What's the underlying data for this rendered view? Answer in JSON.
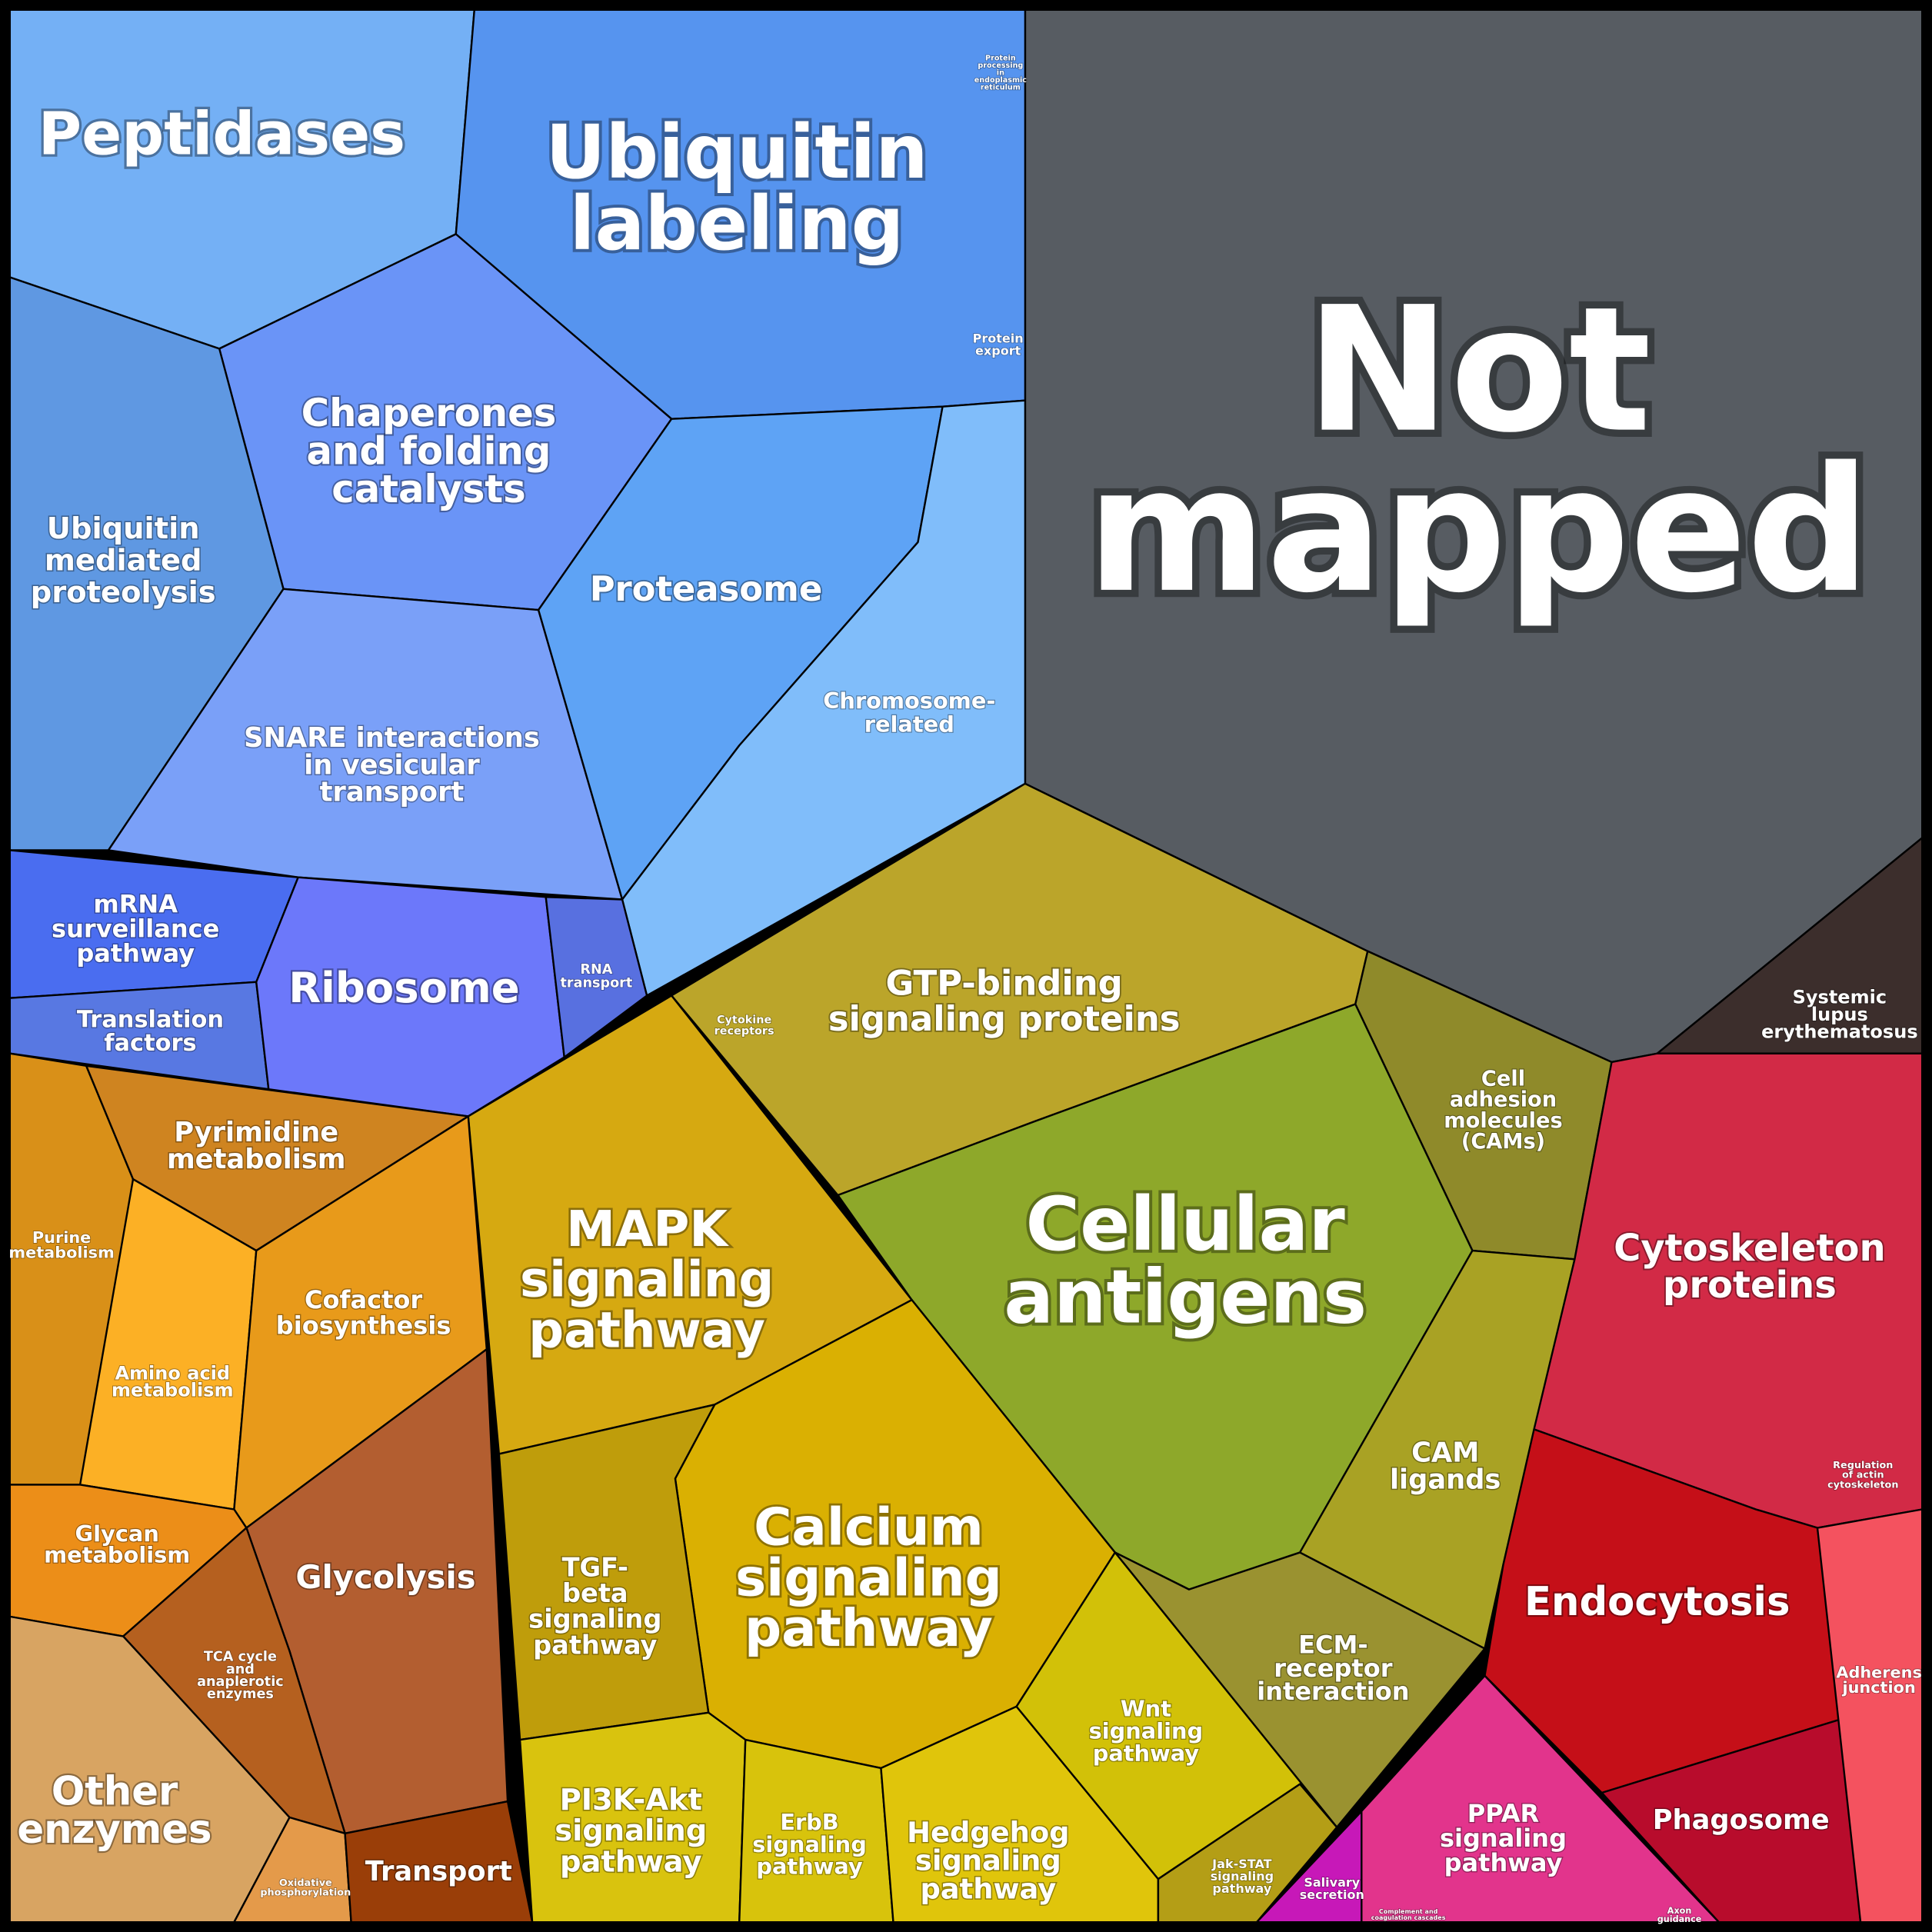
{
  "regions": [
    {
      "lines": [
        "Peptidases"
      ]
    },
    {
      "lines": [
        "Ubiquitin",
        "labeling"
      ]
    },
    {
      "lines": [
        "Not",
        "mapped"
      ]
    },
    {
      "lines": [
        "Chaperones",
        "and folding",
        "catalysts"
      ]
    },
    {
      "lines": [
        "Ubiquitin",
        "mediated",
        "proteolysis"
      ]
    },
    {
      "lines": [
        "Proteasome"
      ]
    },
    {
      "lines": [
        "SNARE interactions",
        "in vesicular",
        "transport"
      ]
    },
    {
      "lines": [
        "Chromosome-",
        "related"
      ]
    },
    {
      "lines": [
        "Protein",
        "export"
      ]
    },
    {
      "lines": [
        "Protein",
        "processing",
        "in",
        "endoplasmic",
        "reticulum"
      ]
    },
    {
      "lines": [
        "mRNA",
        "surveillance",
        "pathway"
      ]
    },
    {
      "lines": [
        "Translation",
        "factors"
      ]
    },
    {
      "lines": [
        "Ribosome"
      ]
    },
    {
      "lines": [
        "RNA",
        "transport"
      ]
    },
    {
      "lines": [
        "Cytokine",
        "receptors"
      ]
    },
    {
      "lines": [
        "GTP-binding",
        "signaling proteins"
      ]
    },
    {
      "lines": [
        "Systemic",
        "lupus",
        "erythematosus"
      ]
    },
    {
      "lines": [
        "Cell",
        "adhesion",
        "molecules",
        "(CAMs)"
      ]
    },
    {
      "lines": [
        "Cellular",
        "antigens"
      ]
    },
    {
      "lines": [
        "Cytoskeleton",
        "proteins"
      ]
    },
    {
      "lines": [
        "CAM",
        "ligands"
      ]
    },
    {
      "lines": [
        "Regulation",
        "of actin",
        "cytoskeleton"
      ]
    },
    {
      "lines": [
        "Endocytosis"
      ]
    },
    {
      "lines": [
        "Phagosome"
      ]
    },
    {
      "lines": [
        "Adherens",
        "junction"
      ]
    },
    {
      "lines": [
        "PPAR",
        "signaling",
        "pathway"
      ]
    },
    {
      "lines": [
        "Salivary",
        "secretion"
      ]
    },
    {
      "lines": [
        "Axon",
        "guidance"
      ]
    },
    {
      "lines": [
        "Complement and",
        "coagulation cascades"
      ]
    },
    {
      "lines": [
        "ECM-",
        "receptor",
        "interaction"
      ]
    },
    {
      "lines": [
        "Wnt",
        "signaling",
        "pathway"
      ]
    },
    {
      "lines": [
        "Jak-STAT",
        "signaling",
        "pathway"
      ]
    },
    {
      "lines": [
        "MAPK",
        "signaling",
        "pathway"
      ]
    },
    {
      "lines": [
        "Calcium",
        "signaling",
        "pathway"
      ]
    },
    {
      "lines": [
        "TGF-",
        "beta",
        "signaling",
        "pathway"
      ]
    },
    {
      "lines": [
        "PI3K-Akt",
        "signaling",
        "pathway"
      ]
    },
    {
      "lines": [
        "ErbB",
        "signaling",
        "pathway"
      ]
    },
    {
      "lines": [
        "Hedgehog",
        "signaling",
        "pathway"
      ]
    },
    {
      "lines": [
        "Pyrimidine",
        "metabolism"
      ]
    },
    {
      "lines": [
        "Purine",
        "metabolism"
      ]
    },
    {
      "lines": [
        "Cofactor",
        "biosynthesis"
      ]
    },
    {
      "lines": [
        "Amino acid",
        "metabolism"
      ]
    },
    {
      "lines": [
        "Glycan",
        "metabolism"
      ]
    },
    {
      "lines": [
        "Glycolysis"
      ]
    },
    {
      "lines": [
        "TCA cycle",
        "and",
        "anaplerotic",
        "enzymes"
      ]
    },
    {
      "lines": [
        "Other",
        "enzymes"
      ]
    },
    {
      "lines": [
        "Oxidative",
        "phosphorylation"
      ]
    },
    {
      "lines": [
        "Transport"
      ]
    }
  ]
}
